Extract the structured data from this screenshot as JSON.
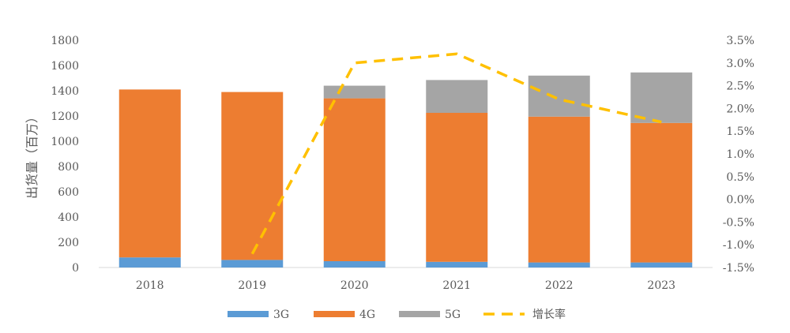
{
  "chart_data": {
    "type": "bar",
    "stacked": true,
    "categories": [
      "2018",
      "2019",
      "2020",
      "2021",
      "2022",
      "2023"
    ],
    "series": [
      {
        "name": "3G",
        "values": [
          80,
          60,
          50,
          45,
          40,
          40
        ],
        "color": "#5b9bd5"
      },
      {
        "name": "4G",
        "values": [
          1330,
          1330,
          1290,
          1180,
          1155,
          1105
        ],
        "color": "#ed7d31"
      },
      {
        "name": "5G",
        "values": [
          0,
          0,
          100,
          260,
          325,
          400
        ],
        "color": "#a5a5a5"
      }
    ],
    "line_series": {
      "name": "增长率",
      "axis": "right",
      "values": [
        null,
        -1.2,
        3.0,
        3.2,
        2.2,
        1.7
      ],
      "color": "#ffc000",
      "style": "dashed"
    },
    "ylabel": "出货量（百万）",
    "ylim": [
      0,
      1800
    ],
    "yticks": [
      "0",
      "200",
      "400",
      "600",
      "800",
      "1000",
      "1200",
      "1400",
      "1600",
      "1800"
    ],
    "y2lim": [
      -1.5,
      3.5
    ],
    "y2ticks": [
      "-1.5%",
      "-1.0%",
      "-0.5%",
      "0.0%",
      "0.5%",
      "1.0%",
      "1.5%",
      "2.0%",
      "2.5%",
      "3.0%",
      "3.5%"
    ],
    "legend": {
      "placement": "bottom",
      "entries": [
        "3G",
        "4G",
        "5G",
        "增长率"
      ]
    },
    "grid": false
  }
}
